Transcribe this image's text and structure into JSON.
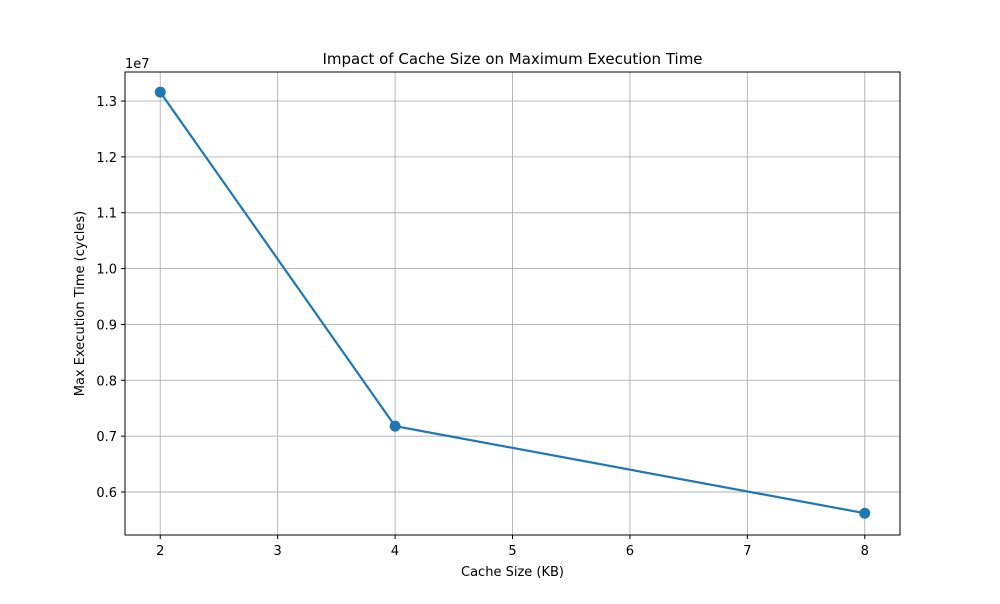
{
  "chart_data": {
    "type": "line",
    "title": "Impact of Cache Size on Maximum Execution Time",
    "xlabel": "Cache Size (KB)",
    "ylabel": "Max Execution Time (cycles)",
    "y_offset_text": "1e7",
    "xlim": [
      1.7,
      8.3
    ],
    "ylim": [
      0.523,
      1.352
    ],
    "x_ticks": [
      2,
      3,
      4,
      5,
      6,
      7,
      8
    ],
    "y_ticks": [
      0.6,
      0.7,
      0.8,
      0.9,
      1.0,
      1.1,
      1.2,
      1.3
    ],
    "y_tick_labels": [
      "0.6",
      "0.7",
      "0.8",
      "0.9",
      "1.0",
      "1.1",
      "1.2",
      "1.3"
    ],
    "grid": true,
    "series": [
      {
        "x": [
          2,
          4,
          8
        ],
        "y": [
          1.316,
          0.718,
          0.562
        ],
        "color": "#1f77b4",
        "marker": "circle"
      }
    ]
  }
}
